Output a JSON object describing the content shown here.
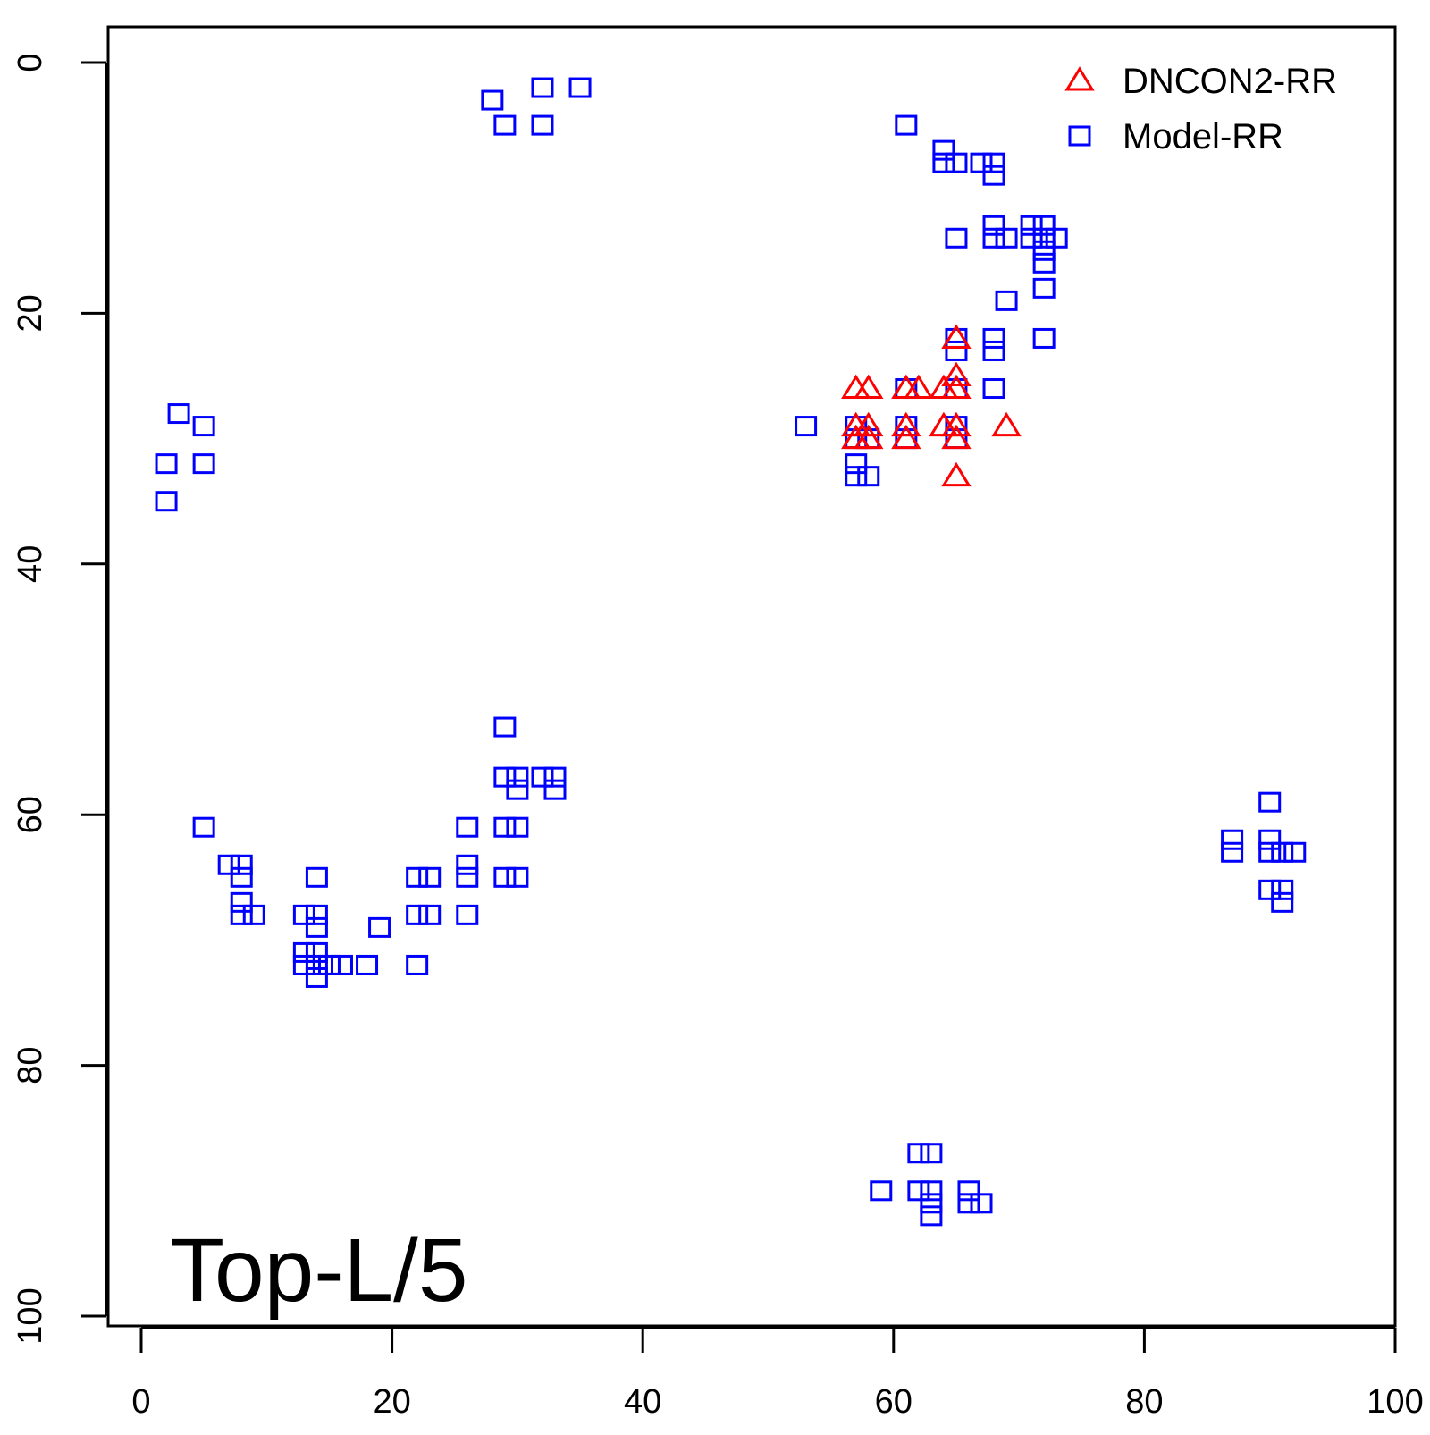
{
  "chart_data": {
    "type": "scatter",
    "title": "",
    "xlabel": "",
    "ylabel": "",
    "xlim": [
      0,
      100
    ],
    "ylim": [
      0,
      100
    ],
    "y_axis_reversed": true,
    "x_ticks": [
      "0",
      "20",
      "40",
      "60",
      "80",
      "100"
    ],
    "y_ticks": [
      "0",
      "20",
      "40",
      "60",
      "80",
      "100"
    ],
    "grid": false,
    "legend_position": "top-right",
    "annotation": "Top-L/5",
    "series": [
      {
        "name": "DNCON2-RR",
        "marker": "triangle",
        "color": "#ff0000",
        "points": [
          [
            57,
            26
          ],
          [
            58,
            26
          ],
          [
            61,
            26
          ],
          [
            62,
            26
          ],
          [
            64,
            26
          ],
          [
            65,
            26
          ],
          [
            65,
            22
          ],
          [
            65,
            25
          ],
          [
            57,
            29
          ],
          [
            58,
            29
          ],
          [
            61,
            29
          ],
          [
            64,
            29
          ],
          [
            65,
            29
          ],
          [
            69,
            29
          ],
          [
            57,
            30
          ],
          [
            58,
            30
          ],
          [
            61,
            30
          ],
          [
            65,
            30
          ],
          [
            65,
            33
          ]
        ]
      },
      {
        "name": "Model-RR",
        "marker": "square",
        "color": "#0000ff",
        "points": [
          [
            28,
            3
          ],
          [
            29,
            5
          ],
          [
            32,
            2
          ],
          [
            32,
            5
          ],
          [
            35,
            2
          ],
          [
            3,
            28
          ],
          [
            5,
            29
          ],
          [
            2,
            32
          ],
          [
            5,
            32
          ],
          [
            2,
            35
          ],
          [
            61,
            5
          ],
          [
            64,
            7
          ],
          [
            64,
            8
          ],
          [
            65,
            8
          ],
          [
            67,
            8
          ],
          [
            68,
            8
          ],
          [
            68,
            9
          ],
          [
            65,
            14
          ],
          [
            68,
            13
          ],
          [
            68,
            14
          ],
          [
            69,
            14
          ],
          [
            71,
            13
          ],
          [
            71,
            14
          ],
          [
            72,
            13
          ],
          [
            72,
            14
          ],
          [
            72,
            15
          ],
          [
            72,
            16
          ],
          [
            73,
            14
          ],
          [
            72,
            18
          ],
          [
            69,
            19
          ],
          [
            65,
            22
          ],
          [
            68,
            22
          ],
          [
            68,
            23
          ],
          [
            65,
            23
          ],
          [
            72,
            22
          ],
          [
            61,
            26
          ],
          [
            65,
            26
          ],
          [
            68,
            26
          ],
          [
            53,
            29
          ],
          [
            57,
            29
          ],
          [
            61,
            29
          ],
          [
            65,
            29
          ],
          [
            57,
            30
          ],
          [
            58,
            30
          ],
          [
            61,
            30
          ],
          [
            65,
            30
          ],
          [
            57,
            32
          ],
          [
            57,
            33
          ],
          [
            58,
            33
          ],
          [
            29,
            53
          ],
          [
            29,
            57
          ],
          [
            30,
            57
          ],
          [
            30,
            58
          ],
          [
            32,
            57
          ],
          [
            33,
            57
          ],
          [
            33,
            58
          ],
          [
            29,
            61
          ],
          [
            30,
            61
          ],
          [
            26,
            61
          ],
          [
            5,
            61
          ],
          [
            7,
            64
          ],
          [
            8,
            64
          ],
          [
            8,
            65
          ],
          [
            26,
            64
          ],
          [
            26,
            65
          ],
          [
            22,
            65
          ],
          [
            23,
            65
          ],
          [
            29,
            65
          ],
          [
            30,
            65
          ],
          [
            14,
            65
          ],
          [
            8,
            67
          ],
          [
            8,
            68
          ],
          [
            9,
            68
          ],
          [
            13,
            68
          ],
          [
            14,
            68
          ],
          [
            22,
            68
          ],
          [
            23,
            68
          ],
          [
            26,
            68
          ],
          [
            14,
            69
          ],
          [
            19,
            69
          ],
          [
            13,
            71
          ],
          [
            14,
            71
          ],
          [
            13,
            72
          ],
          [
            14,
            72
          ],
          [
            15,
            72
          ],
          [
            16,
            72
          ],
          [
            18,
            72
          ],
          [
            22,
            72
          ],
          [
            14,
            73
          ],
          [
            90,
            59
          ],
          [
            87,
            62
          ],
          [
            87,
            63
          ],
          [
            90,
            62
          ],
          [
            90,
            63
          ],
          [
            91,
            63
          ],
          [
            92,
            63
          ],
          [
            90,
            66
          ],
          [
            91,
            66
          ],
          [
            91,
            67
          ],
          [
            62,
            87
          ],
          [
            63,
            87
          ],
          [
            59,
            90
          ],
          [
            62,
            90
          ],
          [
            63,
            90
          ],
          [
            66,
            90
          ],
          [
            63,
            91
          ],
          [
            66,
            91
          ],
          [
            67,
            91
          ],
          [
            63,
            92
          ]
        ]
      }
    ]
  }
}
